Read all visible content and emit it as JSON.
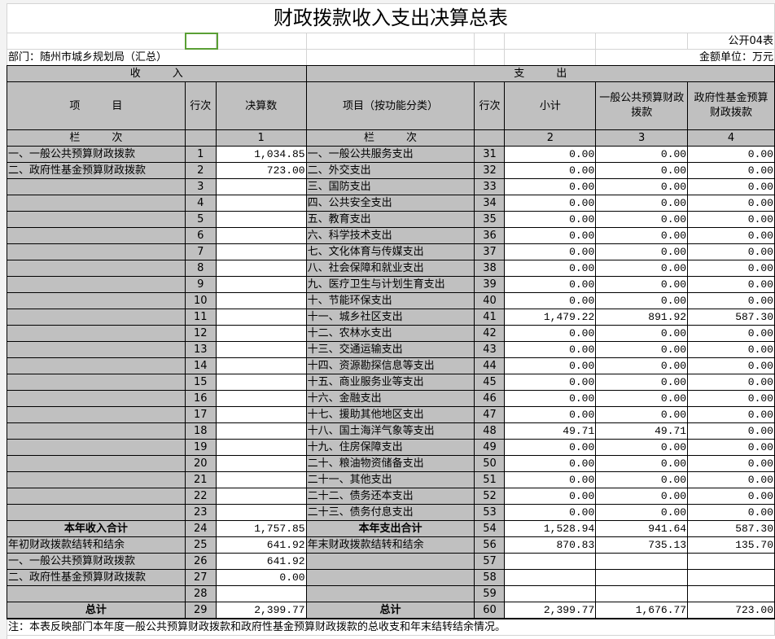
{
  "title": "财政拨款收入支出决算总表",
  "form_no": "公开04表",
  "department": "部门：随州市城乡规划局（汇总）",
  "unit": "金额单位：万元",
  "headers": {
    "income": "收　　　入",
    "expense": "支　　　出",
    "item": "项　　　目",
    "line": "行次",
    "amount": "决算数",
    "func_item": "项目（按功能分类）",
    "subtotal": "小计",
    "general": "一般公共预算财政拨款",
    "fund": "政府性基金预算财政拨款",
    "col_label": "栏　　　次",
    "c1": "1",
    "c2": "2",
    "c3": "3",
    "c4": "4"
  },
  "rows": [
    {
      "in": "一、一般公共预算财政拨款",
      "il": "1",
      "iv": "1,034.85",
      "ex": "一、一般公共服务支出",
      "el": "31",
      "v": [
        "0.00",
        "0.00",
        "0.00"
      ]
    },
    {
      "in": "二、政府性基金预算财政拨款",
      "il": "2",
      "iv": "723.00",
      "ex": "二、外交支出",
      "el": "32",
      "v": [
        "0.00",
        "0.00",
        "0.00"
      ]
    },
    {
      "in": "",
      "il": "3",
      "iv": "",
      "ex": "三、国防支出",
      "el": "33",
      "v": [
        "0.00",
        "0.00",
        "0.00"
      ]
    },
    {
      "in": "",
      "il": "4",
      "iv": "",
      "ex": "四、公共安全支出",
      "el": "34",
      "v": [
        "0.00",
        "0.00",
        "0.00"
      ]
    },
    {
      "in": "",
      "il": "5",
      "iv": "",
      "ex": "五、教育支出",
      "el": "35",
      "v": [
        "0.00",
        "0.00",
        "0.00"
      ]
    },
    {
      "in": "",
      "il": "6",
      "iv": "",
      "ex": "六、科学技术支出",
      "el": "36",
      "v": [
        "0.00",
        "0.00",
        "0.00"
      ]
    },
    {
      "in": "",
      "il": "7",
      "iv": "",
      "ex": "七、文化体育与传媒支出",
      "el": "37",
      "v": [
        "0.00",
        "0.00",
        "0.00"
      ]
    },
    {
      "in": "",
      "il": "8",
      "iv": "",
      "ex": "八、社会保障和就业支出",
      "el": "38",
      "v": [
        "0.00",
        "0.00",
        "0.00"
      ]
    },
    {
      "in": "",
      "il": "9",
      "iv": "",
      "ex": "九、医疗卫生与计划生育支出",
      "el": "39",
      "v": [
        "0.00",
        "0.00",
        "0.00"
      ]
    },
    {
      "in": "",
      "il": "10",
      "iv": "",
      "ex": "十、节能环保支出",
      "el": "40",
      "v": [
        "0.00",
        "0.00",
        "0.00"
      ]
    },
    {
      "in": "",
      "il": "11",
      "iv": "",
      "ex": "十一、城乡社区支出",
      "el": "41",
      "v": [
        "1,479.22",
        "891.92",
        "587.30"
      ]
    },
    {
      "in": "",
      "il": "12",
      "iv": "",
      "ex": "十二、农林水支出",
      "el": "42",
      "v": [
        "0.00",
        "0.00",
        "0.00"
      ]
    },
    {
      "in": "",
      "il": "13",
      "iv": "",
      "ex": "十三、交通运输支出",
      "el": "43",
      "v": [
        "0.00",
        "0.00",
        "0.00"
      ]
    },
    {
      "in": "",
      "il": "14",
      "iv": "",
      "ex": "十四、资源勘探信息等支出",
      "el": "44",
      "v": [
        "0.00",
        "0.00",
        "0.00"
      ]
    },
    {
      "in": "",
      "il": "15",
      "iv": "",
      "ex": "十五、商业服务业等支出",
      "el": "45",
      "v": [
        "0.00",
        "0.00",
        "0.00"
      ]
    },
    {
      "in": "",
      "il": "16",
      "iv": "",
      "ex": "十六、金融支出",
      "el": "46",
      "v": [
        "0.00",
        "0.00",
        "0.00"
      ]
    },
    {
      "in": "",
      "il": "17",
      "iv": "",
      "ex": "十七、援助其他地区支出",
      "el": "47",
      "v": [
        "0.00",
        "0.00",
        "0.00"
      ]
    },
    {
      "in": "",
      "il": "18",
      "iv": "",
      "ex": "十八、国土海洋气象等支出",
      "el": "48",
      "v": [
        "49.71",
        "49.71",
        "0.00"
      ]
    },
    {
      "in": "",
      "il": "19",
      "iv": "",
      "ex": "十九、住房保障支出",
      "el": "49",
      "v": [
        "0.00",
        "0.00",
        "0.00"
      ]
    },
    {
      "in": "",
      "il": "20",
      "iv": "",
      "ex": "二十、粮油物资储备支出",
      "el": "50",
      "v": [
        "0.00",
        "0.00",
        "0.00"
      ]
    },
    {
      "in": "",
      "il": "21",
      "iv": "",
      "ex": "二十一、其他支出",
      "el": "51",
      "v": [
        "0.00",
        "0.00",
        "0.00"
      ]
    },
    {
      "in": "",
      "il": "22",
      "iv": "",
      "ex": "二十二、债务还本支出",
      "el": "52",
      "v": [
        "0.00",
        "0.00",
        "0.00"
      ]
    },
    {
      "in": "",
      "il": "23",
      "iv": "",
      "ex": "二十三、债务付息支出",
      "el": "53",
      "v": [
        "0.00",
        "0.00",
        "0.00"
      ]
    },
    {
      "in": "本年收入合计",
      "il": "24",
      "iv": "1,757.85",
      "ex": "本年支出合计",
      "el": "54",
      "v": [
        "1,528.94",
        "941.64",
        "587.30"
      ],
      "bold": true
    },
    {
      "in": "年初财政拨款结转和结余",
      "il": "25",
      "iv": "641.92",
      "ex": "年末财政拨款结转和结余",
      "el": "56",
      "v": [
        "870.83",
        "735.13",
        "135.70"
      ]
    },
    {
      "in": "一、一般公共预算财政拨款",
      "il": "26",
      "iv": "641.92",
      "ex": "",
      "el": "57",
      "v": [
        "",
        "",
        ""
      ]
    },
    {
      "in": "二、政府性基金预算财政拨款",
      "il": "27",
      "iv": "0.00",
      "ex": "",
      "el": "58",
      "v": [
        "",
        "",
        ""
      ]
    },
    {
      "in": "",
      "il": "28",
      "iv": "",
      "ex": "",
      "el": "59",
      "v": [
        "",
        "",
        ""
      ]
    },
    {
      "in": "总计",
      "il": "29",
      "iv": "2,399.77",
      "ex": "总计",
      "el": "60",
      "v": [
        "2,399.77",
        "1,676.77",
        "723.00"
      ],
      "bold": true
    }
  ],
  "note": "注：本表反映部门本年度一般公共预算财政拨款和政府性基金预算财政拨款的总收支和年末结转结余情况。"
}
